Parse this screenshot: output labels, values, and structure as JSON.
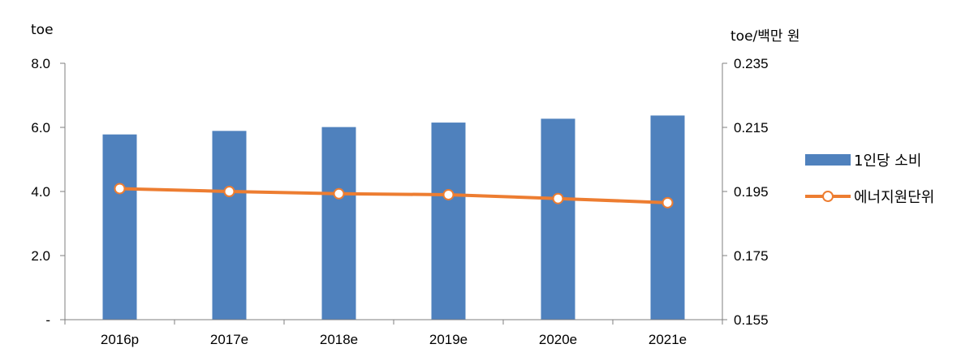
{
  "colors": {
    "bar": "#4f81bd",
    "line": "#ed7d31",
    "axis": "#7f7f7f"
  },
  "chart_data": {
    "type": "bar",
    "categories": [
      "2016p",
      "2017e",
      "2018e",
      "2019e",
      "2020e",
      "2021e"
    ],
    "series": [
      {
        "name": "1인당 소비",
        "type": "bar",
        "axis": "left",
        "values": [
          5.78,
          5.89,
          6.01,
          6.15,
          6.27,
          6.37
        ]
      },
      {
        "name": "에너지원단위",
        "type": "line",
        "axis": "right",
        "values": [
          0.1959,
          0.195,
          0.1943,
          0.194,
          0.1928,
          0.1915
        ]
      }
    ],
    "y_left": {
      "label": "toe",
      "ylim": [
        0,
        8
      ],
      "ticks": [
        0,
        2,
        4,
        6,
        8
      ],
      "tick_labels": [
        "-",
        "2.0",
        "4.0",
        "6.0",
        "8.0"
      ]
    },
    "y_right": {
      "label": "toe/백만 원",
      "ylim": [
        0.155,
        0.235
      ],
      "ticks": [
        0.155,
        0.175,
        0.195,
        0.215,
        0.235
      ],
      "tick_labels": [
        "0.155",
        "0.175",
        "0.195",
        "0.215",
        "0.235"
      ]
    },
    "grid": false,
    "legend": "right"
  }
}
